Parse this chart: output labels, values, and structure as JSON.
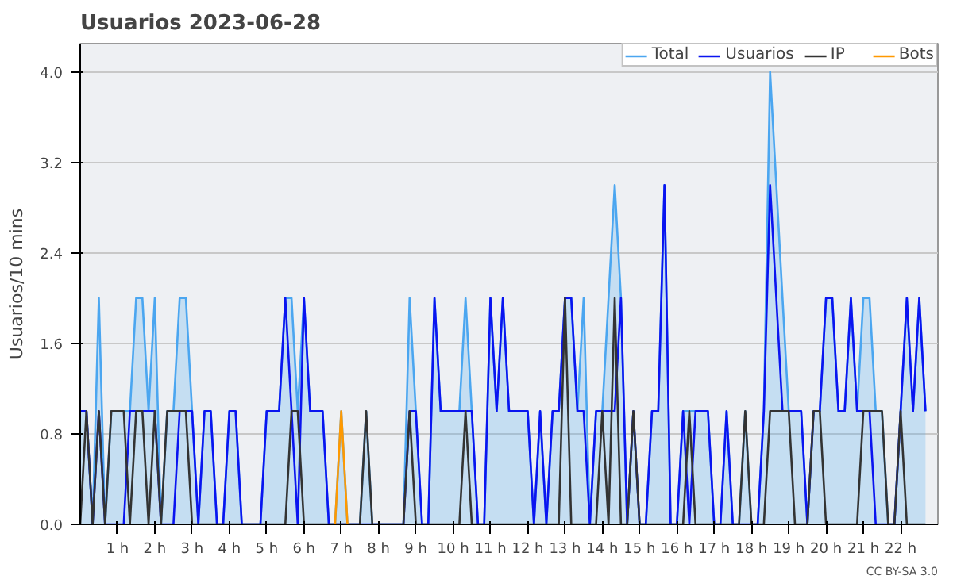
{
  "chart_data": {
    "type": "line",
    "title": "Usuarios  2023-06-28",
    "ylabel": "Usuarios/10 mins",
    "x": [
      0,
      0.167,
      0.333,
      0.5,
      0.667,
      0.833,
      1,
      1.167,
      1.333,
      1.5,
      1.667,
      1.833,
      2,
      2.167,
      2.333,
      2.5,
      2.667,
      2.833,
      3,
      3.167,
      3.333,
      3.5,
      3.667,
      3.833,
      4,
      4.167,
      4.333,
      4.5,
      4.667,
      4.833,
      5,
      5.167,
      5.333,
      5.5,
      5.667,
      5.833,
      6,
      6.167,
      6.333,
      6.5,
      6.667,
      6.833,
      7,
      7.167,
      7.333,
      7.5,
      7.667,
      7.833,
      8,
      8.167,
      8.333,
      8.5,
      8.667,
      8.833,
      9,
      9.167,
      9.333,
      9.5,
      9.667,
      9.833,
      10,
      10.167,
      10.333,
      10.5,
      10.667,
      10.833,
      11,
      11.167,
      11.333,
      11.5,
      11.667,
      11.833,
      12,
      12.167,
      12.333,
      12.5,
      12.667,
      12.833,
      13,
      13.167,
      13.333,
      13.5,
      13.667,
      13.833,
      14,
      14.167,
      14.333,
      14.5,
      14.667,
      14.833,
      15,
      15.167,
      15.333,
      15.5,
      15.667,
      15.833,
      16,
      16.167,
      16.333,
      16.5,
      16.667,
      16.833,
      17,
      17.167,
      17.333,
      17.5,
      17.667,
      17.833,
      18,
      18.167,
      18.333,
      18.5,
      18.667,
      18.833,
      19,
      19.167,
      19.333,
      19.5,
      19.667,
      19.833,
      20,
      20.167,
      20.333,
      20.5,
      20.667,
      20.833,
      21,
      21.167,
      21.333,
      21.5,
      21.667,
      21.833,
      22,
      22.167,
      22.333,
      22.5,
      22.667
    ],
    "series": [
      {
        "name": "Total",
        "type": "area",
        "color": "#4ba6f0",
        "values": [
          1,
          1,
          0,
          2,
          0,
          1,
          1,
          1,
          1,
          2,
          2,
          1,
          2,
          0,
          1,
          1,
          2,
          2,
          1,
          0,
          1,
          1,
          0,
          0,
          1,
          1,
          0,
          0,
          0,
          0,
          1,
          1,
          1,
          2,
          2,
          1,
          2,
          1,
          1,
          1,
          0,
          0,
          1,
          0,
          0,
          0,
          1,
          0,
          0,
          0,
          0,
          0,
          0,
          2,
          1,
          0,
          0,
          2,
          1,
          1,
          1,
          1,
          2,
          1,
          0,
          0,
          2,
          1,
          2,
          1,
          1,
          1,
          1,
          0,
          1,
          0,
          1,
          1,
          2,
          2,
          1,
          2,
          0,
          1,
          1,
          2,
          3,
          2,
          0,
          1,
          0,
          0,
          1,
          1,
          3,
          0,
          0,
          1,
          1,
          1,
          1,
          1,
          0,
          0,
          1,
          0,
          0,
          1,
          0,
          0,
          1,
          4,
          3,
          2,
          1,
          1,
          1,
          0,
          1,
          1,
          2,
          2,
          1,
          1,
          2,
          1,
          2,
          2,
          1,
          1,
          0,
          0,
          1,
          2,
          1,
          2,
          1
        ]
      },
      {
        "name": "Usuarios",
        "color": "#0a14f0",
        "values": [
          1,
          1,
          0,
          1,
          0,
          0,
          0,
          0,
          1,
          1,
          1,
          1,
          1,
          0,
          0,
          0,
          1,
          1,
          1,
          0,
          1,
          1,
          0,
          0,
          1,
          1,
          0,
          0,
          0,
          0,
          1,
          1,
          1,
          2,
          1,
          0,
          2,
          1,
          1,
          1,
          0,
          0,
          0,
          0,
          0,
          0,
          0,
          0,
          0,
          0,
          0,
          0,
          0,
          1,
          1,
          0,
          0,
          2,
          1,
          1,
          1,
          1,
          1,
          1,
          0,
          0,
          2,
          1,
          2,
          1,
          1,
          1,
          1,
          0,
          1,
          0,
          1,
          1,
          2,
          2,
          1,
          1,
          0,
          1,
          1,
          1,
          1,
          2,
          0,
          1,
          0,
          0,
          1,
          1,
          3,
          0,
          0,
          1,
          0,
          1,
          1,
          1,
          0,
          0,
          1,
          0,
          0,
          0,
          0,
          0,
          1,
          3,
          2,
          1,
          1,
          1,
          1,
          0,
          1,
          1,
          2,
          2,
          1,
          1,
          2,
          1,
          1,
          1,
          0,
          0,
          0,
          0,
          1,
          2,
          1,
          2,
          1
        ]
      },
      {
        "name": "IP",
        "color": "#333333",
        "values": [
          0,
          1,
          0,
          1,
          0,
          1,
          1,
          1,
          0,
          1,
          1,
          0,
          1,
          0,
          1,
          1,
          1,
          1,
          0,
          0,
          0,
          0,
          0,
          0,
          0,
          0,
          0,
          0,
          0,
          0,
          0,
          0,
          0,
          0,
          1,
          1,
          0,
          0,
          0,
          0,
          0,
          0,
          0,
          0,
          0,
          0,
          1,
          0,
          0,
          0,
          0,
          0,
          0,
          1,
          0,
          0,
          0,
          0,
          0,
          0,
          0,
          0,
          1,
          0,
          0,
          0,
          0,
          0,
          0,
          0,
          0,
          0,
          0,
          0,
          0,
          0,
          0,
          0,
          2,
          0,
          0,
          0,
          0,
          0,
          1,
          0,
          2,
          0,
          0,
          1,
          0,
          0,
          0,
          0,
          0,
          0,
          0,
          0,
          1,
          0,
          0,
          0,
          0,
          0,
          0,
          0,
          0,
          1,
          0,
          0,
          0,
          1,
          1,
          1,
          1,
          0,
          0,
          0,
          1,
          1,
          0,
          0,
          0,
          0,
          0,
          0,
          1,
          1,
          1,
          1,
          0,
          0,
          1,
          0,
          0,
          0,
          0
        ]
      },
      {
        "name": "Bots",
        "color": "#ff9900",
        "values": [
          null,
          null,
          null,
          null,
          null,
          null,
          null,
          null,
          null,
          null,
          null,
          null,
          null,
          null,
          null,
          null,
          null,
          null,
          null,
          null,
          null,
          null,
          null,
          null,
          null,
          null,
          null,
          null,
          null,
          null,
          null,
          null,
          null,
          null,
          null,
          null,
          null,
          null,
          null,
          null,
          null,
          0,
          1,
          0,
          null,
          null,
          null,
          null,
          null,
          null,
          null,
          null,
          null,
          null,
          null,
          null,
          null,
          null,
          null,
          null,
          null,
          null,
          null,
          null,
          null,
          null,
          null,
          null,
          null,
          null,
          null,
          null,
          null,
          null,
          null,
          null,
          null,
          null,
          null,
          null,
          null,
          null,
          null,
          null,
          null,
          null,
          null,
          null,
          null,
          null,
          null,
          null,
          null,
          null,
          null,
          null,
          null,
          null,
          null,
          null,
          null,
          null,
          null,
          null,
          null,
          null,
          null,
          null,
          null,
          null,
          null,
          null,
          null,
          null,
          null,
          null,
          null,
          null,
          null,
          null,
          null,
          null,
          null,
          null,
          null,
          null,
          null,
          null,
          null,
          null,
          null,
          null,
          null,
          null,
          null,
          null,
          null
        ]
      }
    ],
    "xlim": [
      0,
      23
    ],
    "xticks": [
      {
        "value": 1,
        "label": "1 h"
      },
      {
        "value": 2,
        "label": "2 h"
      },
      {
        "value": 3,
        "label": "3 h"
      },
      {
        "value": 4,
        "label": "4 h"
      },
      {
        "value": 5,
        "label": "5 h"
      },
      {
        "value": 6,
        "label": "6 h"
      },
      {
        "value": 7,
        "label": "7 h"
      },
      {
        "value": 8,
        "label": "8 h"
      },
      {
        "value": 9,
        "label": "9 h"
      },
      {
        "value": 10,
        "label": "10 h"
      },
      {
        "value": 11,
        "label": "11 h"
      },
      {
        "value": 12,
        "label": "12 h"
      },
      {
        "value": 13,
        "label": "13 h"
      },
      {
        "value": 14,
        "label": "14 h"
      },
      {
        "value": 15,
        "label": "15 h"
      },
      {
        "value": 16,
        "label": "16 h"
      },
      {
        "value": 17,
        "label": "17 h"
      },
      {
        "value": 18,
        "label": "18 h"
      },
      {
        "value": 19,
        "label": "19 h"
      },
      {
        "value": 20,
        "label": "20 h"
      },
      {
        "value": 21,
        "label": "21 h"
      },
      {
        "value": 22,
        "label": "22 h"
      }
    ],
    "ylim": [
      0,
      4.25
    ],
    "yticks": [
      {
        "value": 0,
        "label": "0.0"
      },
      {
        "value": 0.8,
        "label": "0.8"
      },
      {
        "value": 1.6,
        "label": "1.6"
      },
      {
        "value": 2.4,
        "label": "2.4"
      },
      {
        "value": 3.2,
        "label": "3.2"
      },
      {
        "value": 4,
        "label": "4.0"
      }
    ],
    "grid": "y",
    "legend": "top right",
    "marker": "none",
    "line_style": "solid",
    "annotations": [
      "CC BY-SA 3.0"
    ]
  }
}
